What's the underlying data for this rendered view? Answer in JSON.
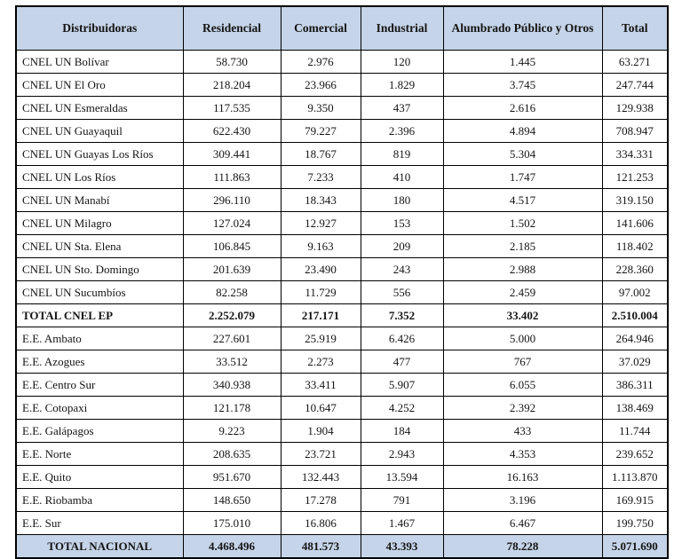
{
  "colors": {
    "header_bg": "#c5d4e8",
    "grandtotal_bg": "#c5d4e8",
    "border": "#000000",
    "text": "#141414"
  },
  "chart_data": {
    "type": "table",
    "columns": [
      "Distribuidoras",
      "Residencial",
      "Comercial",
      "Industrial",
      "Alumbrado Público y Otros",
      "Total"
    ],
    "rows": [
      {
        "label": "CNEL UN Bolívar",
        "values": [
          "58.730",
          "2.976",
          "120",
          "1.445",
          "63.271"
        ],
        "style": "data"
      },
      {
        "label": "CNEL UN El Oro",
        "values": [
          "218.204",
          "23.966",
          "1.829",
          "3.745",
          "247.744"
        ],
        "style": "data"
      },
      {
        "label": "CNEL UN Esmeraldas",
        "values": [
          "117.535",
          "9.350",
          "437",
          "2.616",
          "129.938"
        ],
        "style": "data"
      },
      {
        "label": "CNEL UN Guayaquil",
        "values": [
          "622.430",
          "79.227",
          "2.396",
          "4.894",
          "708.947"
        ],
        "style": "data"
      },
      {
        "label": "CNEL UN Guayas Los Ríos",
        "values": [
          "309.441",
          "18.767",
          "819",
          "5.304",
          "334.331"
        ],
        "style": "data"
      },
      {
        "label": "CNEL UN Los Ríos",
        "values": [
          "111.863",
          "7.233",
          "410",
          "1.747",
          "121.253"
        ],
        "style": "data"
      },
      {
        "label": "CNEL UN Manabí",
        "values": [
          "296.110",
          "18.343",
          "180",
          "4.517",
          "319.150"
        ],
        "style": "data"
      },
      {
        "label": "CNEL UN Milagro",
        "values": [
          "127.024",
          "12.927",
          "153",
          "1.502",
          "141.606"
        ],
        "style": "data"
      },
      {
        "label": "CNEL UN Sta. Elena",
        "values": [
          "106.845",
          "9.163",
          "209",
          "2.185",
          "118.402"
        ],
        "style": "data"
      },
      {
        "label": "CNEL UN Sto. Domingo",
        "values": [
          "201.639",
          "23.490",
          "243",
          "2.988",
          "228.360"
        ],
        "style": "data"
      },
      {
        "label": "CNEL UN Sucumbíos",
        "values": [
          "82.258",
          "11.729",
          "556",
          "2.459",
          "97.002"
        ],
        "style": "data"
      },
      {
        "label": "TOTAL CNEL EP",
        "values": [
          "2.252.079",
          "217.171",
          "7.352",
          "33.402",
          "2.510.004"
        ],
        "style": "subtotal"
      },
      {
        "label": "E.E. Ambato",
        "values": [
          "227.601",
          "25.919",
          "6.426",
          "5.000",
          "264.946"
        ],
        "style": "data"
      },
      {
        "label": "E.E. Azogues",
        "values": [
          "33.512",
          "2.273",
          "477",
          "767",
          "37.029"
        ],
        "style": "data"
      },
      {
        "label": "E.E. Centro Sur",
        "values": [
          "340.938",
          "33.411",
          "5.907",
          "6.055",
          "386.311"
        ],
        "style": "data"
      },
      {
        "label": "E.E. Cotopaxi",
        "values": [
          "121.178",
          "10.647",
          "4.252",
          "2.392",
          "138.469"
        ],
        "style": "data"
      },
      {
        "label": "E.E. Galápagos",
        "values": [
          "9.223",
          "1.904",
          "184",
          "433",
          "11.744"
        ],
        "style": "data"
      },
      {
        "label": "E.E. Norte",
        "values": [
          "208.635",
          "23.721",
          "2.943",
          "4.353",
          "239.652"
        ],
        "style": "data"
      },
      {
        "label": "E.E. Quito",
        "values": [
          "951.670",
          "132.443",
          "13.594",
          "16.163",
          "1.113.870"
        ],
        "style": "data"
      },
      {
        "label": "E.E. Riobamba",
        "values": [
          "148.650",
          "17.278",
          "791",
          "3.196",
          "169.915"
        ],
        "style": "data"
      },
      {
        "label": "E.E. Sur",
        "values": [
          "175.010",
          "16.806",
          "1.467",
          "6.467",
          "199.750"
        ],
        "style": "data"
      },
      {
        "label": "TOTAL NACIONAL",
        "values": [
          "4.468.496",
          "481.573",
          "43.393",
          "78.228",
          "5.071.690"
        ],
        "style": "grandtotal"
      }
    ]
  }
}
